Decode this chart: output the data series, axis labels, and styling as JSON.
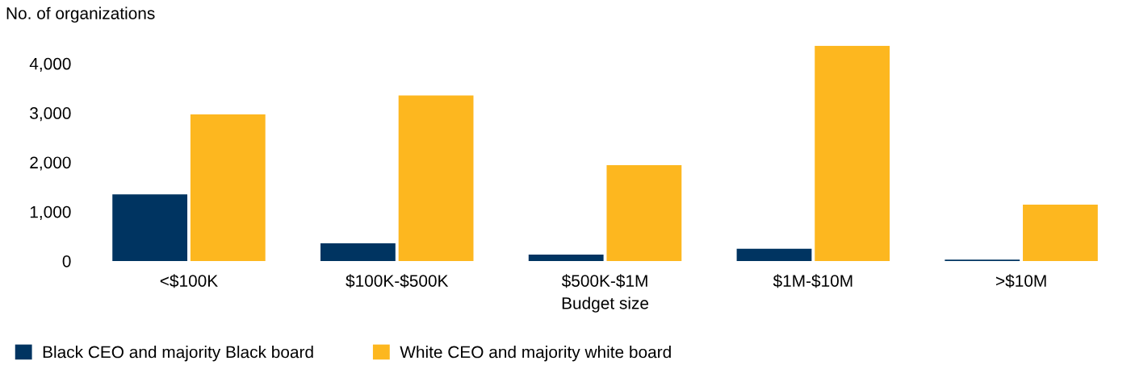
{
  "chart_data": {
    "type": "bar",
    "ylabel": "No. of organizations",
    "xlabel": "Budget size",
    "categories": [
      "<$100K",
      "$100K-$500K",
      "$500K-$1M",
      "$1M-$10M",
      ">$10M"
    ],
    "series": [
      {
        "name": "Black CEO and majority Black board",
        "color": "#003461",
        "values": [
          1350,
          360,
          130,
          250,
          30
        ]
      },
      {
        "name": "White CEO and majority white board",
        "color": "#fdb71f",
        "values": [
          2970,
          3350,
          1940,
          4360,
          1140
        ]
      }
    ],
    "ylim": [
      0,
      4360
    ],
    "yticks": [
      0,
      {
        "value": 1000,
        "label": "1,000"
      },
      {
        "value": 2000,
        "label": "2,000"
      },
      {
        "value": 3000,
        "label": "3,000"
      },
      {
        "value": 4000,
        "label": "4,000"
      }
    ],
    "grid": false,
    "legend": "bottom left"
  }
}
